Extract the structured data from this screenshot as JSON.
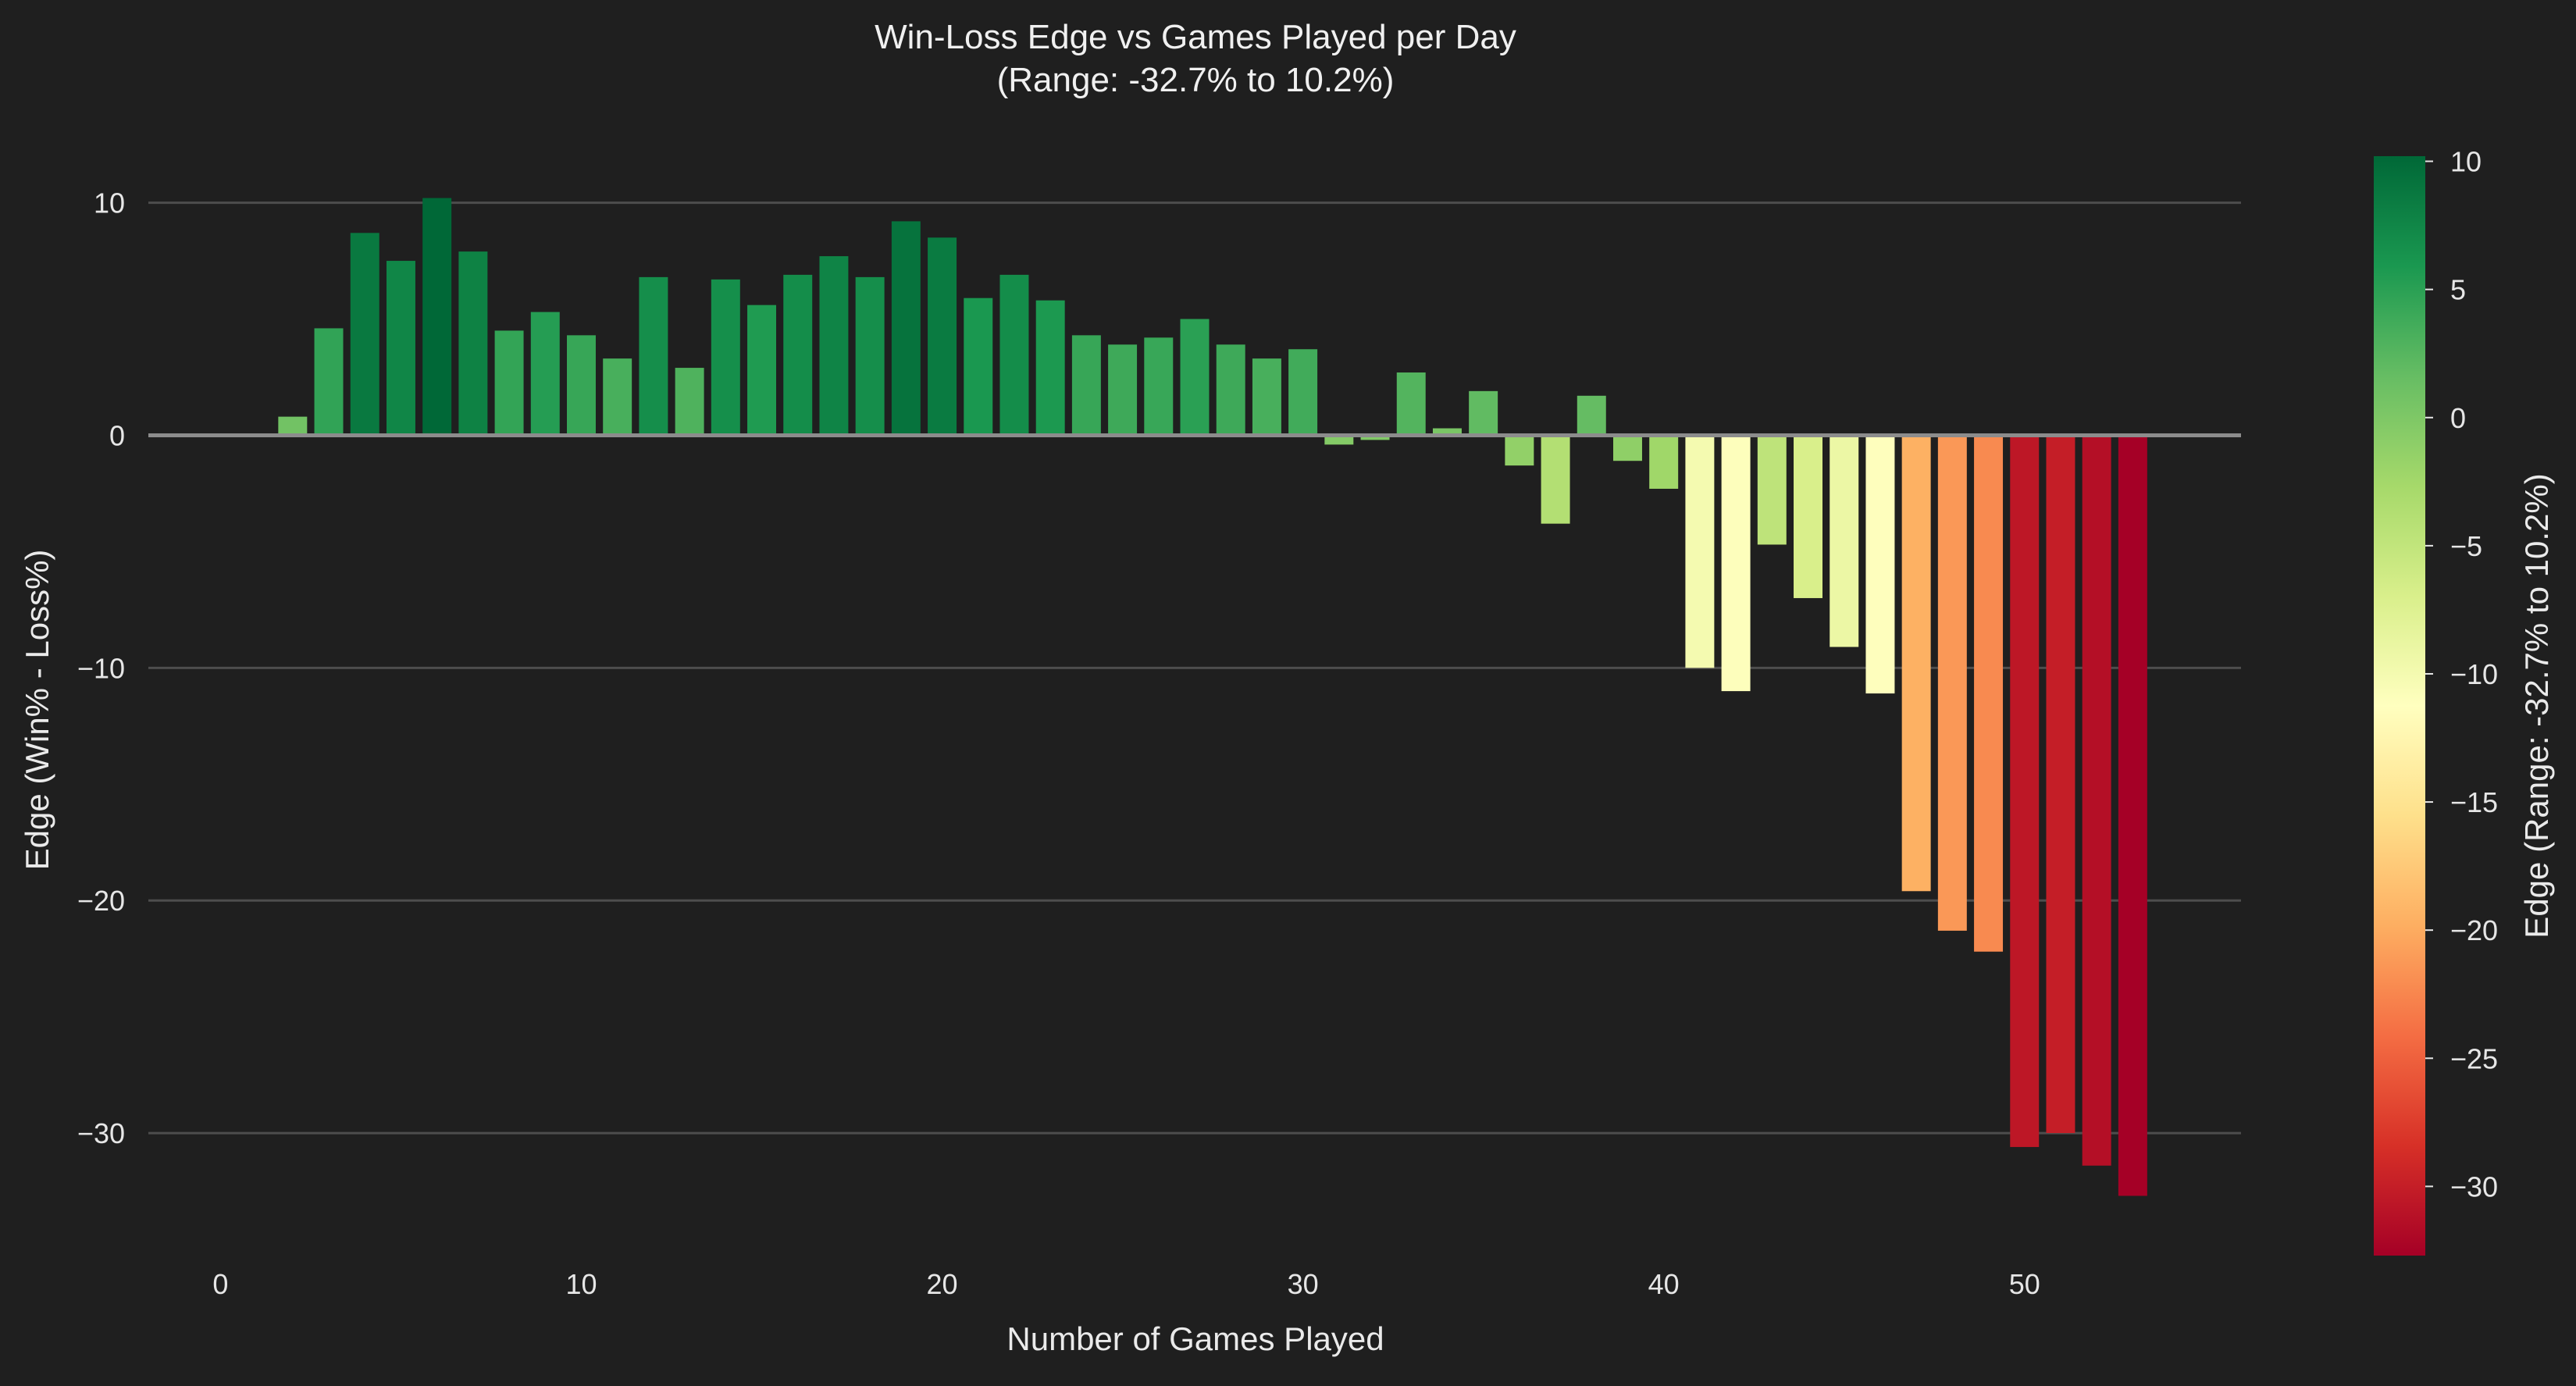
{
  "chart_data": {
    "type": "bar",
    "title": "Win-Loss Edge vs Games Played per Day",
    "subtitle": "(Range: -32.7% to 10.2%)",
    "xlabel": "Number of Games Played",
    "ylabel": "Edge (Win% - Loss%)",
    "colorbar_label": "Edge (Range: -32.7% to 10.2%)",
    "colormap": "RdYlGn",
    "x": [
      2,
      3,
      4,
      5,
      6,
      7,
      8,
      9,
      10,
      11,
      12,
      13,
      14,
      15,
      16,
      17,
      18,
      19,
      20,
      21,
      22,
      23,
      24,
      25,
      26,
      27,
      28,
      29,
      30,
      31,
      32,
      33,
      34,
      35,
      36,
      37,
      38,
      39,
      40,
      41,
      42,
      43,
      44,
      45,
      46,
      47,
      48,
      49,
      50,
      51,
      52,
      53
    ],
    "values": [
      0.8,
      4.6,
      8.7,
      7.5,
      10.2,
      7.9,
      4.5,
      5.3,
      4.3,
      3.3,
      6.8,
      2.9,
      6.7,
      5.6,
      6.9,
      7.7,
      6.8,
      9.2,
      8.5,
      5.9,
      6.9,
      5.8,
      4.3,
      3.9,
      4.2,
      5.0,
      3.9,
      3.3,
      3.7,
      -0.4,
      -0.2,
      2.7,
      0.3,
      1.9,
      -1.3,
      -3.8,
      1.7,
      -1.1,
      -2.3,
      -10.0,
      -11.0,
      -4.7,
      -7.0,
      -9.1,
      -11.1,
      -19.6,
      -21.3,
      -22.2,
      -30.6,
      -30.0,
      -31.4,
      -32.7
    ],
    "xlim": [
      -2,
      56
    ],
    "ylim": [
      -35,
      12
    ],
    "xticks": [
      0,
      10,
      20,
      30,
      40,
      50
    ],
    "yticks": [
      10,
      0,
      -10,
      -20,
      -30
    ],
    "colorbar_ticks": [
      10,
      5,
      0,
      -5,
      -10,
      -15,
      -20,
      -25,
      -30
    ],
    "colorbar_range": [
      -32.7,
      10.2
    ],
    "grid": true,
    "background": "#1f1f1f"
  }
}
